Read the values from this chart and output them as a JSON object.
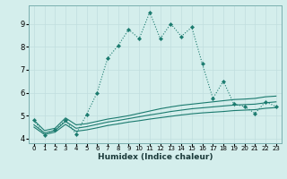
{
  "xlabel": "Humidex (Indice chaleur)",
  "background_color": "#d4eeec",
  "grid_color": "#c0dede",
  "line_color": "#1a7a6e",
  "xlim": [
    -0.5,
    23.5
  ],
  "ylim": [
    3.8,
    9.8
  ],
  "x_ticks": [
    0,
    1,
    2,
    3,
    4,
    5,
    6,
    7,
    8,
    9,
    10,
    11,
    12,
    13,
    14,
    15,
    16,
    17,
    18,
    19,
    20,
    21,
    22,
    23
  ],
  "y_ticks": [
    4,
    5,
    6,
    7,
    8,
    9
  ],
  "line1_x": [
    0,
    1,
    2,
    3,
    4,
    5,
    6,
    7,
    8,
    9,
    10,
    11,
    12,
    13,
    14,
    15,
    16,
    17,
    18,
    19,
    20,
    21,
    22,
    23
  ],
  "line1_y": [
    4.8,
    4.15,
    4.4,
    4.8,
    4.2,
    5.05,
    6.0,
    7.5,
    8.05,
    8.75,
    8.35,
    9.5,
    8.35,
    9.0,
    8.45,
    8.85,
    7.25,
    5.75,
    6.5,
    5.5,
    5.4,
    5.1,
    5.6,
    5.4
  ],
  "line2_x": [
    0,
    1,
    2,
    3,
    4,
    5,
    6,
    7,
    8,
    9,
    10,
    11,
    12,
    13,
    14,
    15,
    16,
    17,
    18,
    19,
    20,
    21,
    22,
    23
  ],
  "line2_y": [
    4.8,
    4.35,
    4.45,
    4.9,
    4.6,
    4.65,
    4.75,
    4.85,
    4.92,
    5.0,
    5.1,
    5.2,
    5.3,
    5.38,
    5.45,
    5.5,
    5.55,
    5.6,
    5.65,
    5.7,
    5.72,
    5.75,
    5.82,
    5.85
  ],
  "line3_x": [
    0,
    1,
    2,
    3,
    4,
    5,
    6,
    7,
    8,
    9,
    10,
    11,
    12,
    13,
    14,
    15,
    16,
    17,
    18,
    19,
    20,
    21,
    22,
    23
  ],
  "line3_y": [
    4.6,
    4.25,
    4.35,
    4.75,
    4.45,
    4.52,
    4.62,
    4.72,
    4.79,
    4.87,
    4.95,
    5.03,
    5.1,
    5.18,
    5.24,
    5.3,
    5.34,
    5.38,
    5.42,
    5.46,
    5.48,
    5.5,
    5.56,
    5.6
  ],
  "line4_x": [
    0,
    1,
    2,
    3,
    4,
    5,
    6,
    7,
    8,
    9,
    10,
    11,
    12,
    13,
    14,
    15,
    16,
    17,
    18,
    19,
    20,
    21,
    22,
    23
  ],
  "line4_y": [
    4.5,
    4.18,
    4.28,
    4.62,
    4.32,
    4.38,
    4.47,
    4.57,
    4.64,
    4.72,
    4.78,
    4.85,
    4.91,
    4.97,
    5.03,
    5.08,
    5.12,
    5.15,
    5.18,
    5.22,
    5.24,
    5.26,
    5.32,
    5.35
  ]
}
